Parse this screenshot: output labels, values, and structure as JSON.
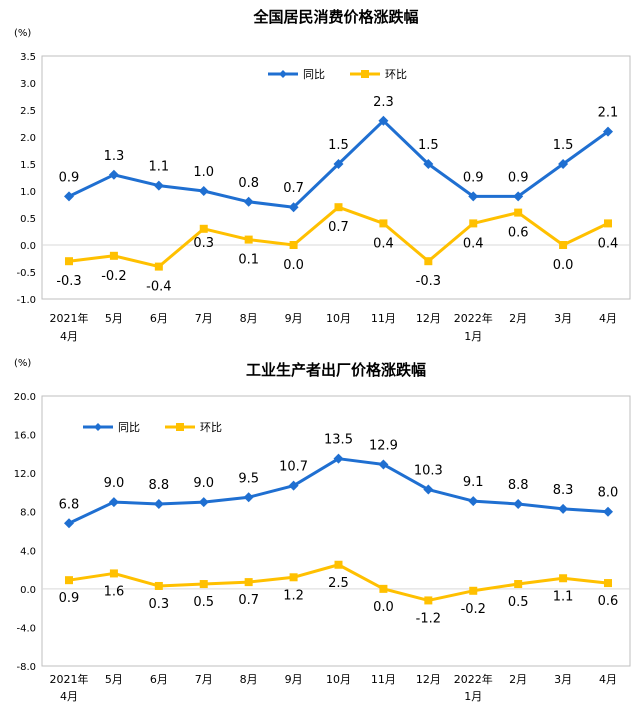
{
  "chart_data": [
    {
      "type": "line",
      "title": "全国居民消费价格涨跌幅",
      "unit": "(%)",
      "categories": [
        "2021年\n4月",
        "5月",
        "6月",
        "7月",
        "8月",
        "9月",
        "10月",
        "11月",
        "12月",
        "2022年\n1月",
        "2月",
        "3月",
        "4月"
      ],
      "series": [
        {
          "name": "同比",
          "color": "#1f6fd1",
          "marker": "diamond",
          "values": [
            0.9,
            1.3,
            1.1,
            1.0,
            0.8,
            0.7,
            1.5,
            2.3,
            1.5,
            0.9,
            0.9,
            1.5,
            2.1
          ]
        },
        {
          "name": "环比",
          "color": "#ffc000",
          "marker": "square",
          "values": [
            -0.3,
            -0.2,
            -0.4,
            0.3,
            0.1,
            0.0,
            0.7,
            0.4,
            -0.3,
            0.4,
            0.6,
            0.0,
            0.4
          ]
        }
      ],
      "ylim": [
        -1.0,
        3.5
      ],
      "yticks": [
        "-1.0",
        "-0.5",
        "0.0",
        "0.5",
        "1.0",
        "1.5",
        "2.0",
        "2.5",
        "3.0",
        "3.5"
      ],
      "ytick_values": [
        -1.0,
        -0.5,
        0.0,
        0.5,
        1.0,
        1.5,
        2.0,
        2.5,
        3.0,
        3.5
      ],
      "series_labels": [
        [
          "0.9",
          "1.3",
          "1.1",
          "1.0",
          "0.8",
          "0.7",
          "1.5",
          "2.3",
          "1.5",
          "0.9",
          "0.9",
          "1.5",
          "2.1"
        ],
        [
          "-0.3",
          "-0.2",
          "-0.4",
          "0.3",
          "0.1",
          "0.0",
          "0.7",
          "0.4",
          "-0.3",
          "0.4",
          "0.6",
          "0.0",
          "0.4"
        ]
      ],
      "grid": false,
      "legend": "top"
    },
    {
      "type": "line",
      "title": "工业生产者出厂价格涨跌幅",
      "unit": "(%)",
      "categories": [
        "2021年\n4月",
        "5月",
        "6月",
        "7月",
        "8月",
        "9月",
        "10月",
        "11月",
        "12月",
        "2022年\n1月",
        "2月",
        "3月",
        "4月"
      ],
      "series": [
        {
          "name": "同比",
          "color": "#1f6fd1",
          "marker": "diamond",
          "values": [
            6.8,
            9.0,
            8.8,
            9.0,
            9.5,
            10.7,
            13.5,
            12.9,
            10.3,
            9.1,
            8.8,
            8.3,
            8.0
          ]
        },
        {
          "name": "环比",
          "color": "#ffc000",
          "marker": "square",
          "values": [
            0.9,
            1.6,
            0.3,
            0.5,
            0.7,
            1.2,
            2.5,
            0.0,
            -1.2,
            -0.2,
            0.5,
            1.1,
            0.6
          ]
        }
      ],
      "ylim": [
        -8.0,
        20.0
      ],
      "yticks": [
        "-8.0",
        "-4.0",
        "0.0",
        "4.0",
        "8.0",
        "12.0",
        "16.0",
        "20.0"
      ],
      "ytick_values": [
        -8.0,
        -4.0,
        0.0,
        4.0,
        8.0,
        12.0,
        16.0,
        20.0
      ],
      "series_labels": [
        [
          "6.8",
          "9.0",
          "8.8",
          "9.0",
          "9.5",
          "10.7",
          "13.5",
          "12.9",
          "10.3",
          "9.1",
          "8.8",
          "8.3",
          "8.0"
        ],
        [
          "0.9",
          "1.6",
          "0.3",
          "0.5",
          "0.7",
          "1.2",
          "2.5",
          "0.0",
          "-1.2",
          "-0.2",
          "0.5",
          "1.1",
          "0.6"
        ]
      ],
      "grid": false,
      "legend": "top-left"
    }
  ]
}
